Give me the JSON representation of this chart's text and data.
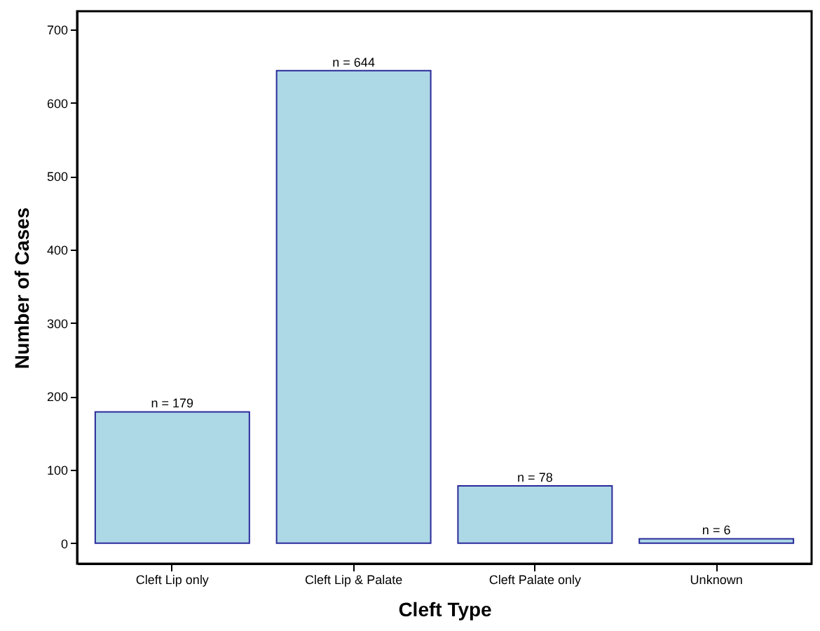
{
  "chart_data": {
    "type": "bar",
    "xlabel": "Cleft Type",
    "ylabel": "Number of Cases",
    "categories": [
      "Cleft Lip only",
      "Cleft Lip & Palate",
      "Cleft Palate only",
      "Unknown"
    ],
    "values": [
      179,
      644,
      78,
      6
    ],
    "value_labels": [
      "n = 179",
      "n = 644",
      "n = 78",
      "n = 6"
    ],
    "color": "#add8e6",
    "ylim": [
      -28,
      725
    ],
    "yticks": [
      0,
      100,
      200,
      300,
      400,
      500,
      600,
      700
    ],
    "grid": false
  }
}
